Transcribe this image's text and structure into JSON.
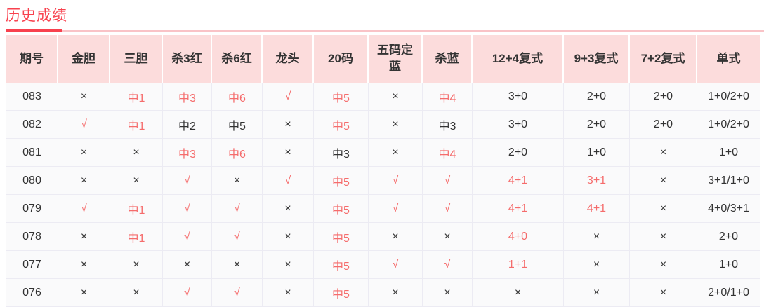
{
  "title": "历史成绩",
  "colors": {
    "accent": "#f8414e",
    "soft_red": "#f56c6c",
    "header_bg": "#fcdcdc",
    "underline_pink": "#f9c3c7"
  },
  "table": {
    "columns": [
      {
        "key": "qihao",
        "label": "期号"
      },
      {
        "key": "jindan",
        "label": "金胆"
      },
      {
        "key": "sandan",
        "label": "三胆"
      },
      {
        "key": "sha3hong",
        "label": "杀3红"
      },
      {
        "key": "sha6hong",
        "label": "杀6红"
      },
      {
        "key": "longtou",
        "label": "龙头"
      },
      {
        "key": "ma20",
        "label": "20码"
      },
      {
        "key": "wumadinglan",
        "label": "五码定蓝"
      },
      {
        "key": "shalan",
        "label": "杀蓝"
      },
      {
        "key": "fushi12-4",
        "label": "12+4复式"
      },
      {
        "key": "fushi9-3",
        "label": "9+3复式"
      },
      {
        "key": "fushi7-2",
        "label": "7+2复式"
      },
      {
        "key": "danshi",
        "label": "单式"
      }
    ],
    "rows": [
      {
        "cells": [
          {
            "t": "083",
            "r": false
          },
          {
            "t": "×",
            "r": false
          },
          {
            "t": "中1",
            "r": true
          },
          {
            "t": "中3",
            "r": true
          },
          {
            "t": "中6",
            "r": true
          },
          {
            "t": "√",
            "r": true
          },
          {
            "t": "中5",
            "r": true
          },
          {
            "t": "×",
            "r": false
          },
          {
            "t": "中4",
            "r": true
          },
          {
            "t": "3+0",
            "r": false
          },
          {
            "t": "2+0",
            "r": false
          },
          {
            "t": "2+0",
            "r": false
          },
          {
            "t": "1+0/2+0",
            "r": false
          }
        ]
      },
      {
        "cells": [
          {
            "t": "082",
            "r": false
          },
          {
            "t": "√",
            "r": true
          },
          {
            "t": "中1",
            "r": true
          },
          {
            "t": "中2",
            "r": false
          },
          {
            "t": "中5",
            "r": false
          },
          {
            "t": "×",
            "r": false
          },
          {
            "t": "中5",
            "r": true
          },
          {
            "t": "×",
            "r": false
          },
          {
            "t": "中3",
            "r": false
          },
          {
            "t": "3+0",
            "r": false
          },
          {
            "t": "2+0",
            "r": false
          },
          {
            "t": "2+0",
            "r": false
          },
          {
            "t": "1+0/2+0",
            "r": false
          }
        ]
      },
      {
        "cells": [
          {
            "t": "081",
            "r": false
          },
          {
            "t": "×",
            "r": false
          },
          {
            "t": "×",
            "r": false
          },
          {
            "t": "中3",
            "r": true
          },
          {
            "t": "中6",
            "r": true
          },
          {
            "t": "×",
            "r": false
          },
          {
            "t": "中3",
            "r": false
          },
          {
            "t": "×",
            "r": false
          },
          {
            "t": "中4",
            "r": true
          },
          {
            "t": "2+0",
            "r": false
          },
          {
            "t": "1+0",
            "r": false
          },
          {
            "t": "×",
            "r": false
          },
          {
            "t": "1+0",
            "r": false
          }
        ]
      },
      {
        "cells": [
          {
            "t": "080",
            "r": false
          },
          {
            "t": "×",
            "r": false
          },
          {
            "t": "×",
            "r": false
          },
          {
            "t": "√",
            "r": true
          },
          {
            "t": "×",
            "r": false
          },
          {
            "t": "√",
            "r": true
          },
          {
            "t": "中5",
            "r": true
          },
          {
            "t": "√",
            "r": true
          },
          {
            "t": "√",
            "r": true
          },
          {
            "t": "4+1",
            "r": true
          },
          {
            "t": "3+1",
            "r": true
          },
          {
            "t": "×",
            "r": false
          },
          {
            "t": "3+1/1+0",
            "r": false
          }
        ]
      },
      {
        "cells": [
          {
            "t": "079",
            "r": false
          },
          {
            "t": "√",
            "r": true
          },
          {
            "t": "中1",
            "r": true
          },
          {
            "t": "√",
            "r": true
          },
          {
            "t": "√",
            "r": true
          },
          {
            "t": "×",
            "r": false
          },
          {
            "t": "中5",
            "r": true
          },
          {
            "t": "√",
            "r": true
          },
          {
            "t": "√",
            "r": true
          },
          {
            "t": "4+1",
            "r": true
          },
          {
            "t": "4+1",
            "r": true
          },
          {
            "t": "×",
            "r": false
          },
          {
            "t": "4+0/3+1",
            "r": false
          }
        ]
      },
      {
        "cells": [
          {
            "t": "078",
            "r": false
          },
          {
            "t": "×",
            "r": false
          },
          {
            "t": "中1",
            "r": true
          },
          {
            "t": "√",
            "r": true
          },
          {
            "t": "√",
            "r": true
          },
          {
            "t": "×",
            "r": false
          },
          {
            "t": "中5",
            "r": true
          },
          {
            "t": "×",
            "r": false
          },
          {
            "t": "×",
            "r": false
          },
          {
            "t": "4+0",
            "r": true
          },
          {
            "t": "×",
            "r": false
          },
          {
            "t": "×",
            "r": false
          },
          {
            "t": "2+0",
            "r": false
          }
        ]
      },
      {
        "cells": [
          {
            "t": "077",
            "r": false
          },
          {
            "t": "×",
            "r": false
          },
          {
            "t": "×",
            "r": false
          },
          {
            "t": "×",
            "r": false
          },
          {
            "t": "×",
            "r": false
          },
          {
            "t": "×",
            "r": false
          },
          {
            "t": "中5",
            "r": true
          },
          {
            "t": "√",
            "r": true
          },
          {
            "t": "√",
            "r": true
          },
          {
            "t": "1+1",
            "r": true
          },
          {
            "t": "×",
            "r": false
          },
          {
            "t": "×",
            "r": false
          },
          {
            "t": "1+0",
            "r": false
          }
        ]
      },
      {
        "cells": [
          {
            "t": "076",
            "r": false
          },
          {
            "t": "×",
            "r": false
          },
          {
            "t": "×",
            "r": false
          },
          {
            "t": "√",
            "r": true
          },
          {
            "t": "√",
            "r": true
          },
          {
            "t": "×",
            "r": false
          },
          {
            "t": "中5",
            "r": true
          },
          {
            "t": "×",
            "r": false
          },
          {
            "t": "×",
            "r": false
          },
          {
            "t": "×",
            "r": false
          },
          {
            "t": "×",
            "r": false
          },
          {
            "t": "×",
            "r": false
          },
          {
            "t": "2+0/1+0",
            "r": false
          }
        ]
      }
    ]
  }
}
